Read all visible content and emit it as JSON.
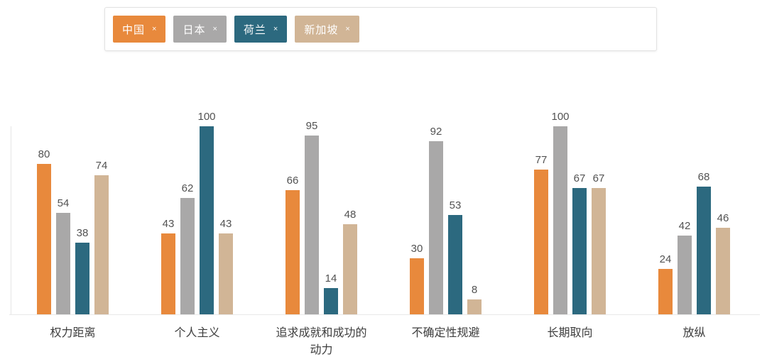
{
  "legend": {
    "tags": [
      {
        "label": "中国",
        "remove_label": "×",
        "color": "#E8893C"
      },
      {
        "label": "日本",
        "remove_label": "×",
        "color": "#A9A8A8"
      },
      {
        "label": "荷兰",
        "remove_label": "×",
        "color": "#2C697F"
      },
      {
        "label": "新加坡",
        "remove_label": "×",
        "color": "#D1B596"
      }
    ]
  },
  "chart_data": {
    "type": "bar",
    "title": "",
    "categories": [
      "权力距离",
      "个人主义",
      "追求成就和成功的\n动力",
      "不确定性规避",
      "长期取向",
      "放纵"
    ],
    "series": [
      {
        "name": "中国",
        "color": "#E8893C",
        "values": [
          80,
          43,
          66,
          30,
          77,
          24
        ]
      },
      {
        "name": "日本",
        "color": "#A9A8A8",
        "values": [
          54,
          62,
          95,
          92,
          100,
          42
        ]
      },
      {
        "name": "荷兰",
        "color": "#2C697F",
        "values": [
          38,
          100,
          14,
          53,
          67,
          68
        ]
      },
      {
        "name": "新加坡",
        "color": "#D1B596",
        "values": [
          74,
          43,
          48,
          8,
          67,
          46
        ]
      }
    ],
    "ylim": [
      0,
      100
    ],
    "xlabel": "",
    "ylabel": "",
    "grid": false,
    "value_labels_shown": true,
    "legend_position": "top",
    "axis_color": "#e8e8e8"
  }
}
